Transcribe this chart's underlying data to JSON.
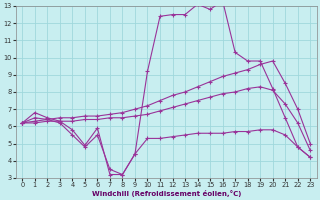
{
  "xlabel": "Windchill (Refroidissement éolien,°C)",
  "background_color": "#c8eef0",
  "grid_color": "#a0d8dc",
  "line_color": "#993399",
  "xlim": [
    -0.5,
    23.5
  ],
  "ylim": [
    3,
    13
  ],
  "xticks": [
    0,
    1,
    2,
    3,
    4,
    5,
    6,
    7,
    8,
    9,
    10,
    11,
    12,
    13,
    14,
    15,
    16,
    17,
    18,
    19,
    20,
    21,
    22,
    23
  ],
  "yticks": [
    3,
    4,
    5,
    6,
    7,
    8,
    9,
    10,
    11,
    12,
    13
  ],
  "lines": [
    {
      "x": [
        0,
        1,
        2,
        3,
        4,
        5,
        6,
        7,
        8,
        9,
        10,
        11,
        12,
        13,
        14,
        15,
        16,
        17,
        18,
        19,
        20,
        21,
        22,
        23
      ],
      "y": [
        6.2,
        6.8,
        6.5,
        6.3,
        5.8,
        4.9,
        5.9,
        3.2,
        3.2,
        4.4,
        9.2,
        12.4,
        12.5,
        12.5,
        13.1,
        12.8,
        13.3,
        10.3,
        9.8,
        9.8,
        8.2,
        6.5,
        4.8,
        4.2
      ]
    },
    {
      "x": [
        0,
        1,
        2,
        3,
        4,
        5,
        6,
        7,
        8,
        9,
        10,
        11,
        12,
        13,
        14,
        15,
        16,
        17,
        18,
        19,
        20,
        21,
        22,
        23
      ],
      "y": [
        6.2,
        6.3,
        6.4,
        6.5,
        6.5,
        6.6,
        6.6,
        6.7,
        6.8,
        7.0,
        7.2,
        7.5,
        7.8,
        8.0,
        8.3,
        8.6,
        8.9,
        9.1,
        9.3,
        9.6,
        9.8,
        8.5,
        7.0,
        5.0
      ]
    },
    {
      "x": [
        0,
        1,
        2,
        3,
        4,
        5,
        6,
        7,
        8,
        9,
        10,
        11,
        12,
        13,
        14,
        15,
        16,
        17,
        18,
        19,
        20,
        21,
        22,
        23
      ],
      "y": [
        6.2,
        6.2,
        6.3,
        6.3,
        6.3,
        6.4,
        6.4,
        6.5,
        6.5,
        6.6,
        6.7,
        6.9,
        7.1,
        7.3,
        7.5,
        7.7,
        7.9,
        8.0,
        8.2,
        8.3,
        8.1,
        7.3,
        6.2,
        4.6
      ]
    },
    {
      "x": [
        0,
        1,
        2,
        3,
        4,
        5,
        6,
        7,
        8,
        9,
        10,
        11,
        12,
        13,
        14,
        15,
        16,
        17,
        18,
        19,
        20,
        21,
        22,
        23
      ],
      "y": [
        6.2,
        6.5,
        6.4,
        6.2,
        5.5,
        4.8,
        5.5,
        3.5,
        3.2,
        4.4,
        5.3,
        5.3,
        5.4,
        5.5,
        5.6,
        5.6,
        5.6,
        5.7,
        5.7,
        5.8,
        5.8,
        5.5,
        4.8,
        4.2
      ]
    }
  ]
}
